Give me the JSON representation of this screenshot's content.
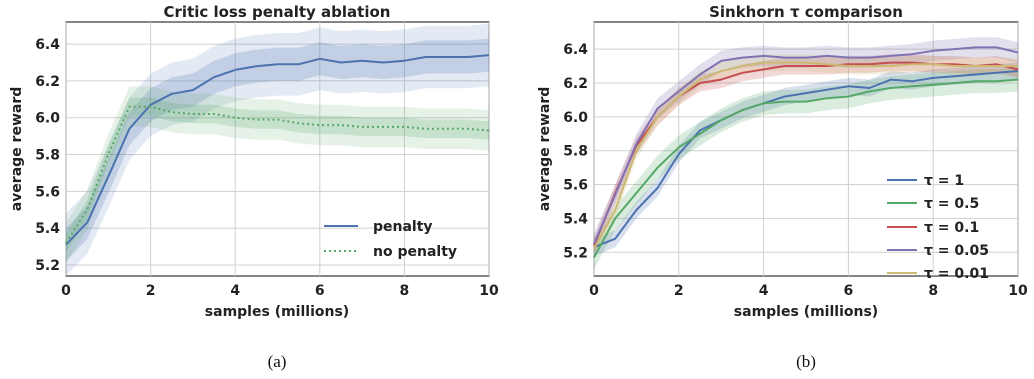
{
  "chart_data": [
    {
      "id": "a",
      "type": "line",
      "title": "Critic loss penalty ablation",
      "xlabel": "samples (millions)",
      "ylabel": "average reward",
      "caption": "(a)",
      "xlim": [
        0,
        10
      ],
      "ylim": [
        5.14,
        6.52
      ],
      "xticks": [
        "0",
        "2",
        "4",
        "6",
        "8",
        "10"
      ],
      "xtick_values": [
        0,
        2,
        4,
        6,
        8,
        10
      ],
      "yticks": [
        "5.2",
        "5.4",
        "5.6",
        "5.8",
        "6.0",
        "6.2",
        "6.4"
      ],
      "ytick_values": [
        5.2,
        5.4,
        5.6,
        5.8,
        6.0,
        6.2,
        6.4
      ],
      "grid": true,
      "legend_position": "lower-right",
      "x": [
        0,
        0.5,
        1,
        1.5,
        2,
        2.5,
        3,
        3.5,
        4,
        4.5,
        5,
        5.5,
        6,
        6.5,
        7,
        7.5,
        8,
        8.5,
        9,
        9.5,
        10
      ],
      "series": [
        {
          "name": "penalty",
          "color": "#4c72b0",
          "style": "solid",
          "values": [
            5.31,
            5.43,
            5.68,
            5.94,
            6.07,
            6.13,
            6.15,
            6.22,
            6.26,
            6.28,
            6.29,
            6.29,
            6.32,
            6.3,
            6.31,
            6.3,
            6.31,
            6.33,
            6.33,
            6.33,
            6.34
          ],
          "band": 0.09,
          "band_outer": 0.17
        },
        {
          "name": "no penalty",
          "color": "#55a868",
          "style": "dotted",
          "values": [
            5.32,
            5.5,
            5.8,
            6.06,
            6.06,
            6.03,
            6.02,
            6.02,
            6.0,
            5.99,
            5.99,
            5.97,
            5.96,
            5.96,
            5.95,
            5.95,
            5.95,
            5.94,
            5.94,
            5.94,
            5.93
          ],
          "band": 0.05,
          "band_outer": 0.11
        }
      ]
    },
    {
      "id": "b",
      "type": "line",
      "title": "Sinkhorn τ comparison",
      "xlabel": "samples (millions)",
      "ylabel": "average reward",
      "caption": "(b)",
      "xlim": [
        0,
        10
      ],
      "ylim": [
        5.06,
        6.56
      ],
      "xticks": [
        "0",
        "2",
        "4",
        "6",
        "8",
        "10"
      ],
      "xtick_values": [
        0,
        2,
        4,
        6,
        8,
        10
      ],
      "yticks": [
        "5.2",
        "5.4",
        "5.6",
        "5.8",
        "6.0",
        "6.2",
        "6.4"
      ],
      "ytick_values": [
        5.2,
        5.4,
        5.6,
        5.8,
        6.0,
        6.2,
        6.4
      ],
      "grid": true,
      "legend_position": "lower-right",
      "x": [
        0,
        0.5,
        1,
        1.5,
        2,
        2.5,
        3,
        3.5,
        4,
        4.5,
        5,
        5.5,
        6,
        6.5,
        7,
        7.5,
        8,
        8.5,
        9,
        9.5,
        10
      ],
      "series": [
        {
          "name": "τ = 1",
          "color": "#4c72b0",
          "values": [
            5.23,
            5.28,
            5.45,
            5.58,
            5.78,
            5.92,
            5.98,
            6.04,
            6.08,
            6.12,
            6.14,
            6.16,
            6.18,
            6.17,
            6.22,
            6.21,
            6.23,
            6.24,
            6.25,
            6.26,
            6.27
          ],
          "band": 0.05
        },
        {
          "name": "τ = 0.5",
          "color": "#55a868",
          "values": [
            5.17,
            5.4,
            5.55,
            5.7,
            5.82,
            5.9,
            5.98,
            6.04,
            6.08,
            6.09,
            6.09,
            6.11,
            6.12,
            6.15,
            6.17,
            6.18,
            6.19,
            6.2,
            6.21,
            6.21,
            6.22
          ],
          "band": 0.07
        },
        {
          "name": "τ = 0.1",
          "color": "#c44e52",
          "values": [
            5.24,
            5.55,
            5.83,
            6.0,
            6.12,
            6.2,
            6.22,
            6.26,
            6.28,
            6.3,
            6.3,
            6.3,
            6.31,
            6.31,
            6.32,
            6.32,
            6.31,
            6.31,
            6.3,
            6.31,
            6.28
          ],
          "band": 0.05
        },
        {
          "name": "τ = 0.05",
          "color": "#8172b2",
          "values": [
            5.25,
            5.54,
            5.84,
            6.05,
            6.15,
            6.25,
            6.33,
            6.35,
            6.36,
            6.35,
            6.35,
            6.36,
            6.35,
            6.35,
            6.36,
            6.37,
            6.39,
            6.4,
            6.41,
            6.41,
            6.38
          ],
          "band": 0.06
        },
        {
          "name": "τ = 0.01",
          "color": "#ccb974",
          "values": [
            5.22,
            5.45,
            5.8,
            6.0,
            6.12,
            6.22,
            6.27,
            6.3,
            6.32,
            6.32,
            6.32,
            6.31,
            6.3,
            6.3,
            6.3,
            6.31,
            6.31,
            6.3,
            6.3,
            6.3,
            6.3
          ],
          "band": 0.05
        }
      ]
    }
  ]
}
